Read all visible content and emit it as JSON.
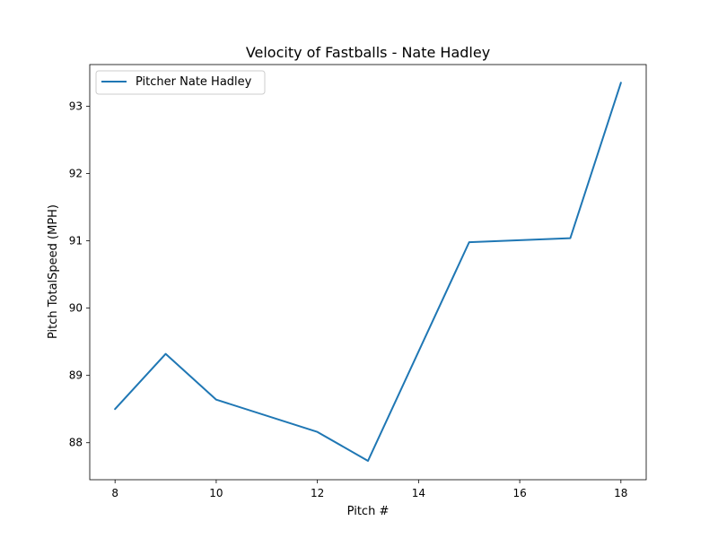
{
  "chart_data": {
    "type": "line",
    "title": "Velocity of Fastballs - Nate Hadley",
    "xlabel": "Pitch #",
    "ylabel": "Pitch TotalSpeed (MPH)",
    "xlim": [
      7.5,
      18.5
    ],
    "ylim": [
      87.45,
      93.62
    ],
    "xticks": [
      8,
      10,
      12,
      14,
      16,
      18
    ],
    "yticks": [
      88,
      89,
      90,
      91,
      92,
      93
    ],
    "grid": false,
    "legend_position": "top-left",
    "series": [
      {
        "name": "Pitcher Nate Hadley",
        "color": "#1f77b4",
        "x": [
          8,
          9,
          10,
          12,
          13,
          15,
          17,
          18
        ],
        "y": [
          88.5,
          89.32,
          88.64,
          88.16,
          87.73,
          90.98,
          91.04,
          93.35
        ]
      }
    ]
  }
}
